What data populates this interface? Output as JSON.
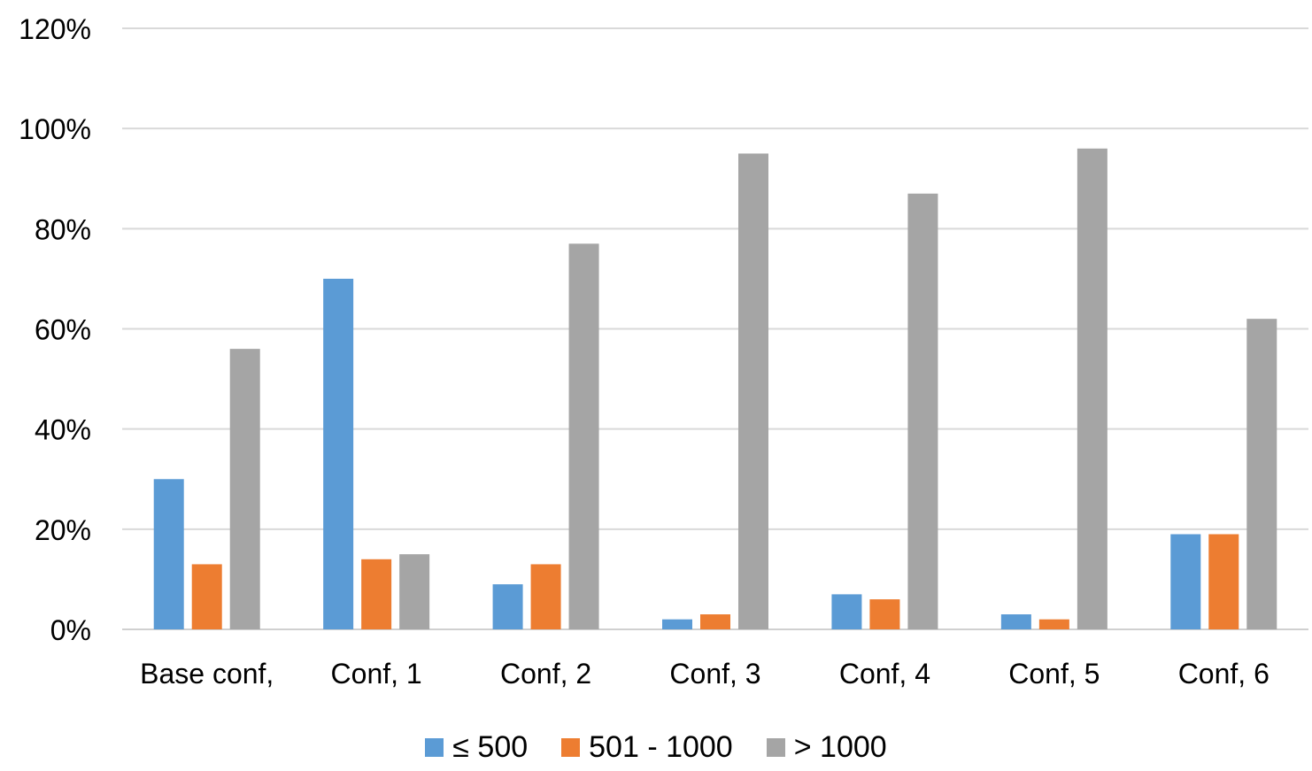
{
  "chart_data": {
    "type": "bar",
    "title": "",
    "xlabel": "",
    "ylabel": "",
    "categories": [
      "Base conf,",
      "Conf, 1",
      "Conf, 2",
      "Conf, 3",
      "Conf, 4",
      "Conf, 5",
      "Conf, 6"
    ],
    "ylim": [
      0,
      1.2
    ],
    "yticks": [
      0,
      0.2,
      0.4,
      0.6,
      0.8,
      1.0,
      1.2
    ],
    "ytick_labels": [
      "0%",
      "20%",
      "40%",
      "60%",
      "80%",
      "100%",
      "120%"
    ],
    "grid": true,
    "legend_position": "bottom",
    "series": [
      {
        "name": "≤ 500",
        "color": "#5B9BD5",
        "values": [
          0.3,
          0.7,
          0.09,
          0.02,
          0.07,
          0.03,
          0.19
        ]
      },
      {
        "name": "501 - 1000",
        "color": "#ED7D31",
        "values": [
          0.13,
          0.14,
          0.13,
          0.03,
          0.06,
          0.02,
          0.19
        ]
      },
      {
        "name": "> 1000",
        "color": "#A5A5A5",
        "values": [
          0.56,
          0.15,
          0.77,
          0.95,
          0.87,
          0.96,
          0.62
        ]
      }
    ]
  }
}
